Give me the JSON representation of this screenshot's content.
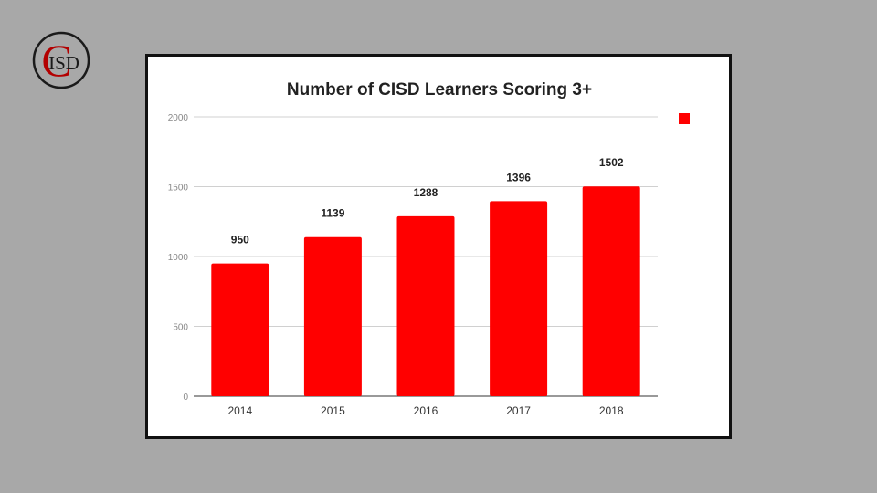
{
  "logo": {
    "text": "ISD",
    "letter": "C"
  },
  "chart_data": {
    "type": "bar",
    "title": "Number of CISD Learners Scoring 3+",
    "xlabel": "",
    "ylabel": "",
    "categories": [
      "2014",
      "2015",
      "2016",
      "2017",
      "2018"
    ],
    "series": [
      {
        "values": [
          950,
          1139,
          1288,
          1396,
          1502
        ],
        "color": "#ff0000"
      }
    ],
    "data_labels": [
      "950",
      "1139",
      "1288",
      "1396",
      "1502"
    ],
    "ylim": [
      0,
      2000
    ],
    "yticks": [
      0,
      500,
      1000,
      1500,
      2000
    ],
    "ytick_labels": [
      "0",
      "500",
      "1000",
      "1500",
      "2000"
    ],
    "grid": true,
    "legend": {
      "placement": "top-right",
      "color": "#ff0000",
      "label": ""
    }
  }
}
